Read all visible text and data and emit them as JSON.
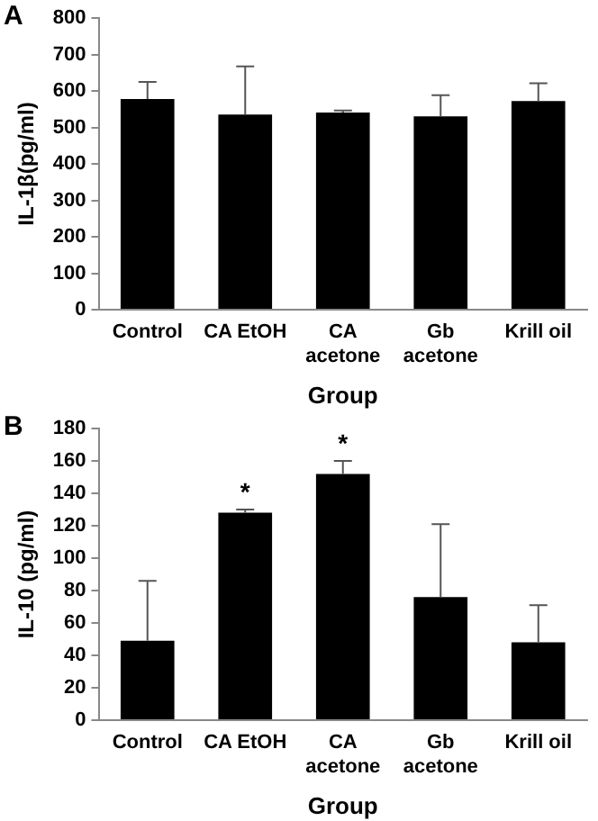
{
  "chart_data": [
    {
      "type": "bar",
      "title": "A",
      "xlabel": "Group",
      "ylabel": "IL-1β(pg/ml)",
      "categories": [
        "Control",
        "CA EtOH",
        "CA\nacetone",
        "Gb\nacetone",
        "Krill oil"
      ],
      "values": [
        578,
        535,
        541,
        530,
        572
      ],
      "errors": [
        [
          578,
          625
        ],
        [
          535,
          667
        ],
        [
          541,
          546
        ],
        [
          530,
          588
        ],
        [
          572,
          621
        ]
      ],
      "color": "#000000",
      "ylim": [
        0,
        800
      ],
      "yticks": [
        0,
        100,
        200,
        300,
        400,
        500,
        600,
        700,
        800
      ],
      "grid": false,
      "legend": false
    },
    {
      "type": "bar",
      "title": "B",
      "xlabel": "Group",
      "ylabel": "IL-10 (pg/ml)",
      "categories": [
        "Control",
        "CA EtOH",
        "CA\nacetone",
        "Gb\nacetone",
        "Krill oil"
      ],
      "values": [
        49,
        128,
        152,
        76,
        48
      ],
      "errors": [
        [
          49,
          86
        ],
        [
          128,
          130
        ],
        [
          152,
          160
        ],
        [
          76,
          121
        ],
        [
          48,
          71
        ]
      ],
      "color": "#000000",
      "ylim": [
        0,
        180
      ],
      "yticks": [
        0,
        20,
        40,
        60,
        80,
        100,
        120,
        140,
        160,
        180
      ],
      "grid": false,
      "legend": false,
      "annotations": [
        {
          "text": "*",
          "x": "CA EtOH",
          "y": 128
        },
        {
          "text": "*",
          "x": "CA\nacetone",
          "y": 152
        }
      ]
    }
  ]
}
